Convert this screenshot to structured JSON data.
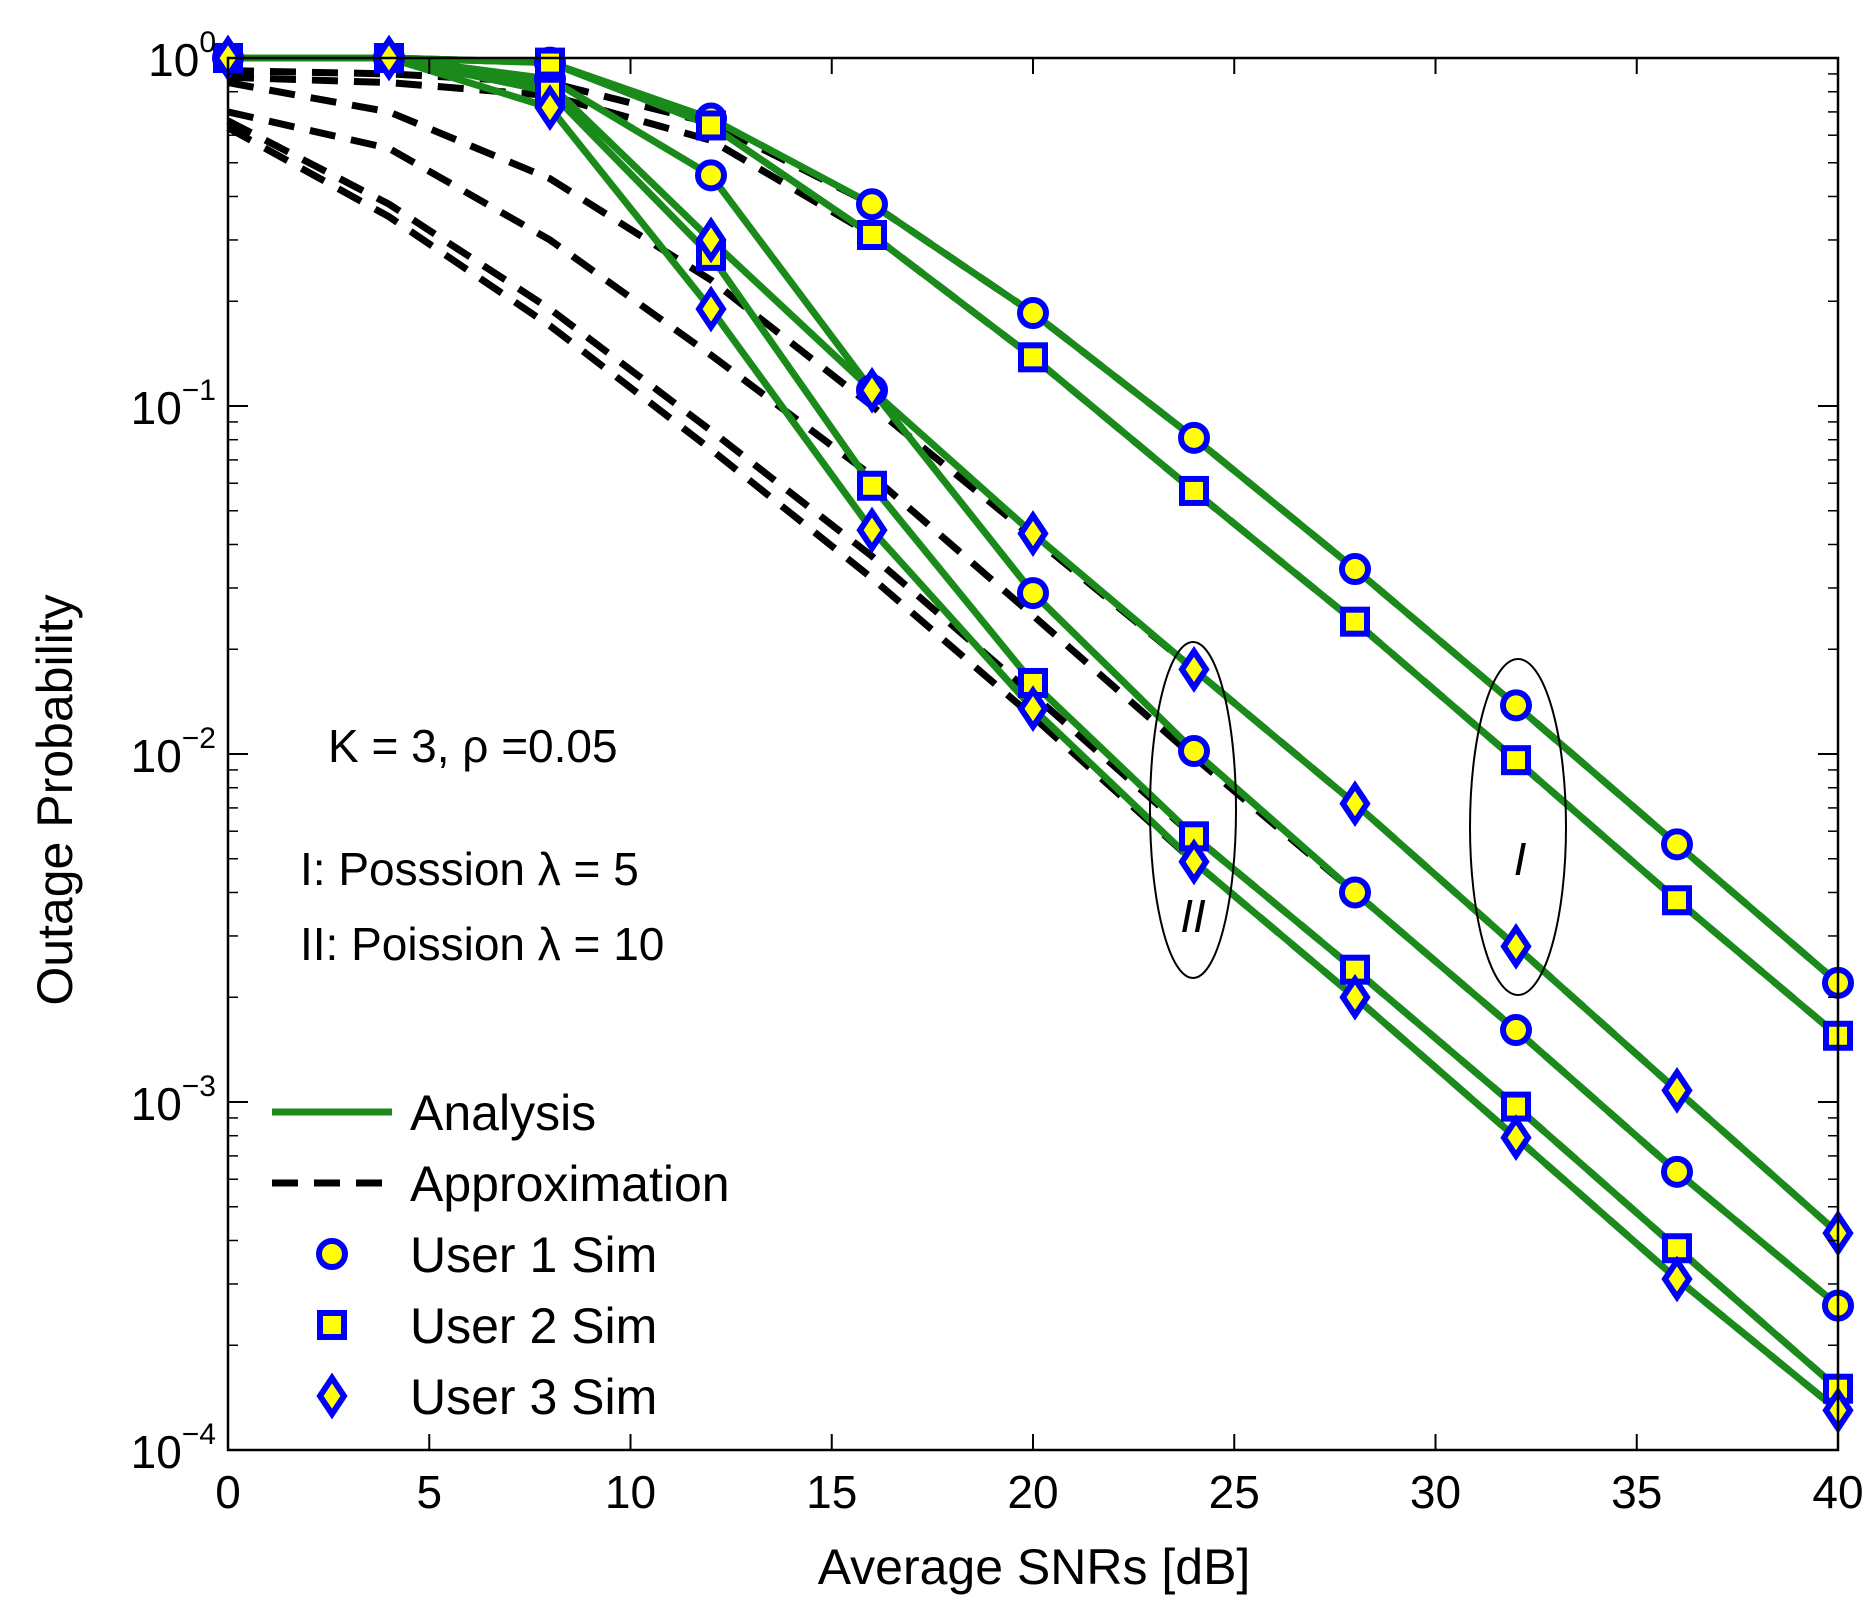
{
  "chart_data": {
    "type": "line",
    "xlabel": "Average SNRs [dB]",
    "ylabel": "Outage Probability",
    "yscale": "log",
    "xlim": [
      0,
      40
    ],
    "ylim": [
      0.0001,
      1
    ],
    "xticks": [
      0,
      5,
      10,
      15,
      20,
      25,
      30,
      35,
      40
    ],
    "yticks": [
      {
        "value": 1,
        "base": "10",
        "exp": "0"
      },
      {
        "value": 0.1,
        "base": "10",
        "exp": "−1"
      },
      {
        "value": 0.01,
        "base": "10",
        "exp": "−2"
      },
      {
        "value": 0.001,
        "base": "10",
        "exp": "−3"
      },
      {
        "value": 0.0001,
        "base": "10",
        "exp": "−4"
      }
    ],
    "grid": false,
    "legend": {
      "position": "bottom-left",
      "entries": [
        {
          "label": "Analysis",
          "style": "solid-line",
          "color": "#1a8a1a"
        },
        {
          "label": "Approximation",
          "style": "dashed-line",
          "color": "#000000"
        },
        {
          "label": "User 1 Sim",
          "style": "marker-circle",
          "color": "#0000ff"
        },
        {
          "label": "User 2 Sim",
          "style": "marker-square",
          "color": "#0000ff"
        },
        {
          "label": "User 3 Sim",
          "style": "marker-diamond",
          "color": "#0000ff"
        }
      ]
    },
    "annotations": {
      "params": "K = 3, ρ =0.05",
      "case1": "I: Posssion λ = 5",
      "case2": "II: Poission λ = 10",
      "ellipse_I_label": "I",
      "ellipse_II_label": "II"
    },
    "x": [
      0,
      4,
      8,
      12,
      16,
      20,
      24,
      28,
      32,
      36,
      40
    ],
    "series": [
      {
        "name": "I User 1 Analysis",
        "kind": "analysis",
        "values": [
          1,
          1,
          0.97,
          0.67,
          0.38,
          0.185,
          0.081,
          0.034,
          0.0138,
          0.0055,
          0.0022
        ]
      },
      {
        "name": "I User 2 Analysis",
        "kind": "analysis",
        "values": [
          1,
          1,
          0.97,
          0.64,
          0.31,
          0.138,
          0.057,
          0.024,
          0.0096,
          0.0038,
          0.00155
        ]
      },
      {
        "name": "I User 3 Analysis",
        "kind": "analysis",
        "values": [
          1,
          1,
          0.84,
          0.3,
          0.111,
          0.043,
          0.0175,
          0.0072,
          0.0028,
          0.00108,
          0.00042
        ]
      },
      {
        "name": "II User 1 Analysis",
        "kind": "analysis",
        "values": [
          1,
          1,
          0.87,
          0.46,
          0.111,
          0.029,
          0.0102,
          0.004,
          0.00161,
          0.00063,
          0.00026
        ]
      },
      {
        "name": "II User 2 Analysis",
        "kind": "analysis",
        "values": [
          1,
          1,
          0.8,
          0.27,
          0.059,
          0.016,
          0.0058,
          0.0024,
          0.00097,
          0.00038,
          0.00015
        ]
      },
      {
        "name": "II User 3 Analysis",
        "kind": "analysis",
        "values": [
          1,
          1,
          0.72,
          0.19,
          0.044,
          0.0135,
          0.0049,
          0.002,
          0.00079,
          0.00031,
          0.00013
        ]
      },
      {
        "name": "I User 1 Approx",
        "kind": "approx",
        "values": [
          0.92,
          0.9,
          0.85,
          0.65,
          0.38,
          0.185,
          0.081,
          0.034,
          0.0138,
          0.0055,
          0.0022
        ]
      },
      {
        "name": "I User 2 Approx",
        "kind": "approx",
        "values": [
          0.88,
          0.85,
          0.78,
          0.58,
          0.31,
          0.138,
          0.057,
          0.024,
          0.0096,
          0.0038,
          0.00155
        ]
      },
      {
        "name": "I User 3 Approx",
        "kind": "approx",
        "values": [
          0.85,
          0.7,
          0.45,
          0.23,
          0.1,
          0.042,
          0.0175,
          0.0072,
          0.0028,
          0.00108,
          0.00042
        ]
      },
      {
        "name": "II User 1 Approx",
        "kind": "approx",
        "values": [
          0.7,
          0.55,
          0.3,
          0.14,
          0.063,
          0.025,
          0.0098,
          0.004,
          0.00161,
          0.00063,
          0.00026
        ]
      },
      {
        "name": "II User 2 Approx",
        "kind": "approx",
        "values": [
          0.66,
          0.38,
          0.19,
          0.085,
          0.037,
          0.0148,
          0.0058,
          0.0024,
          0.00097,
          0.00038,
          0.00015
        ]
      },
      {
        "name": "II User 3 Approx",
        "kind": "approx",
        "values": [
          0.63,
          0.35,
          0.17,
          0.075,
          0.032,
          0.0128,
          0.0049,
          0.002,
          0.00079,
          0.00031,
          0.00013
        ]
      }
    ],
    "markers": [
      {
        "user": 1,
        "marker": "circle",
        "points": [
          [
            0,
            1
          ],
          [
            4,
            1
          ],
          [
            8,
            0.97
          ],
          [
            12,
            0.67
          ],
          [
            16,
            0.38
          ],
          [
            20,
            0.185
          ],
          [
            24,
            0.081
          ],
          [
            28,
            0.034
          ],
          [
            32,
            0.0138
          ],
          [
            36,
            0.0055
          ],
          [
            40,
            0.0022
          ],
          [
            8,
            0.87
          ],
          [
            12,
            0.46
          ],
          [
            16,
            0.111
          ],
          [
            20,
            0.029
          ],
          [
            24,
            0.0102
          ],
          [
            28,
            0.004
          ],
          [
            32,
            0.00161
          ],
          [
            36,
            0.00063
          ],
          [
            40,
            0.00026
          ]
        ]
      },
      {
        "user": 2,
        "marker": "square",
        "points": [
          [
            0,
            1
          ],
          [
            4,
            1
          ],
          [
            8,
            0.97
          ],
          [
            12,
            0.64
          ],
          [
            16,
            0.31
          ],
          [
            20,
            0.138
          ],
          [
            24,
            0.057
          ],
          [
            28,
            0.024
          ],
          [
            32,
            0.0096
          ],
          [
            36,
            0.0038
          ],
          [
            40,
            0.00155
          ],
          [
            8,
            0.8
          ],
          [
            12,
            0.27
          ],
          [
            16,
            0.059
          ],
          [
            20,
            0.016
          ],
          [
            24,
            0.0058
          ],
          [
            28,
            0.0024
          ],
          [
            32,
            0.00097
          ],
          [
            36,
            0.00038
          ],
          [
            40,
            0.00015
          ]
        ]
      },
      {
        "user": 3,
        "marker": "diamond",
        "points": [
          [
            0,
            1
          ],
          [
            4,
            1
          ],
          [
            8,
            0.72
          ],
          [
            12,
            0.3
          ],
          [
            16,
            0.111
          ],
          [
            20,
            0.043
          ],
          [
            24,
            0.0175
          ],
          [
            28,
            0.0072
          ],
          [
            32,
            0.0028
          ],
          [
            36,
            0.00108
          ],
          [
            40,
            0.00042
          ],
          [
            12,
            0.19
          ],
          [
            16,
            0.044
          ],
          [
            20,
            0.0135
          ],
          [
            24,
            0.0049
          ],
          [
            28,
            0.002
          ],
          [
            32,
            0.00079
          ],
          [
            36,
            0.00031
          ],
          [
            40,
            0.00013
          ]
        ]
      }
    ]
  }
}
